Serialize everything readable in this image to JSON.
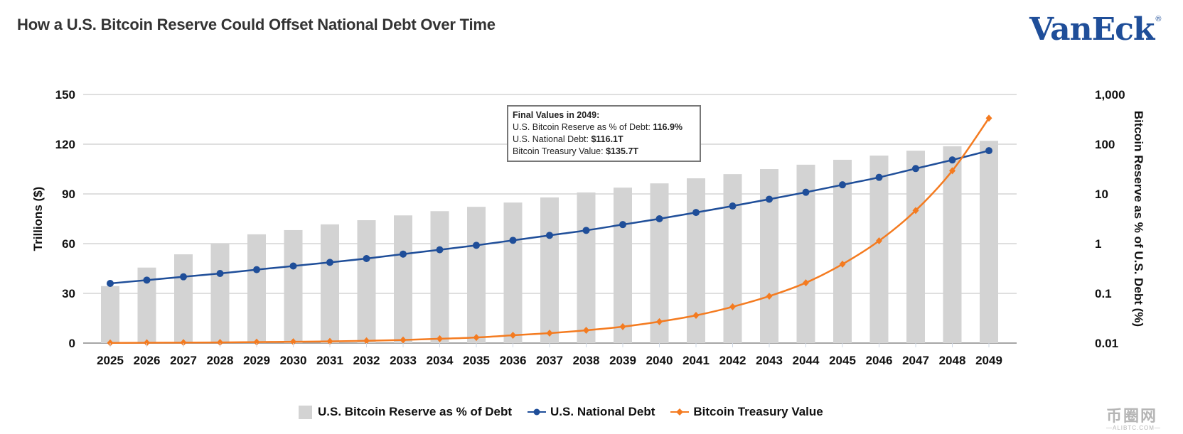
{
  "header": {
    "title": "How a U.S. Bitcoin Reserve Could Offset National Debt Over Time",
    "logo_text": "VanEck",
    "logo_mark": "®"
  },
  "tooltip": {
    "heading": "Final Values in 2049:",
    "rows": [
      {
        "label": "U.S. Bitcoin Reserve as % of Debt: ",
        "value": "116.9%"
      },
      {
        "label": "U.S. National Debt: ",
        "value": "$116.1T"
      },
      {
        "label": "Bitcoin Treasury Value: ",
        "value": "$135.7T"
      }
    ]
  },
  "watermark": {
    "cn": "币圈网",
    "en": "—ALIBTC.COM—"
  },
  "colors": {
    "bar": "#d3d3d3",
    "debt": "#1f4e99",
    "btc": "#f47b20",
    "grid": "#bfbfbf",
    "brand": "#1f4e99"
  },
  "chart_data": {
    "type": "bar+line",
    "title": "How a U.S. Bitcoin Reserve Could Offset National Debt Over Time",
    "xlabel": "",
    "ylabel": "Trillions ($)",
    "y2label": "Bitcoin Reserve as % of U.S. Debt (%)",
    "ylim": [
      0,
      150
    ],
    "yticks": [
      "0",
      "30",
      "60",
      "90",
      "120",
      "150"
    ],
    "y2lim": [
      0.01,
      1000
    ],
    "y2scale": "log",
    "y2ticks": [
      "0.01",
      "0.1",
      "1",
      "10",
      "100",
      "1,000"
    ],
    "grid": true,
    "legend_position": "bottom",
    "categories": [
      "2025",
      "2026",
      "2027",
      "2028",
      "2029",
      "2030",
      "2031",
      "2032",
      "2033",
      "2034",
      "2035",
      "2036",
      "2037",
      "2038",
      "2039",
      "2040",
      "2041",
      "2042",
      "2043",
      "2044",
      "2045",
      "2046",
      "2047",
      "2048",
      "2049"
    ],
    "series": [
      {
        "name": "U.S. Bitcoin Reserve as % of Debt",
        "type": "bar",
        "axis": "right",
        "values": [
          0.14,
          0.33,
          0.61,
          1.0,
          1.54,
          1.87,
          2.44,
          2.96,
          3.7,
          4.5,
          5.5,
          6.7,
          8.5,
          10.7,
          13.4,
          16.3,
          20.6,
          25.0,
          31.6,
          38.7,
          48.6,
          59.0,
          74.0,
          91.0,
          116.9
        ]
      },
      {
        "name": "U.S. National Debt",
        "type": "line",
        "axis": "left",
        "marker": "circle",
        "values": [
          36.0,
          38.0,
          40.0,
          42.0,
          44.3,
          46.5,
          48.7,
          51.0,
          53.7,
          56.3,
          59.0,
          62.0,
          65.0,
          68.0,
          71.5,
          75.0,
          78.8,
          82.7,
          86.8,
          91.0,
          95.5,
          100.0,
          105.3,
          110.5,
          116.1
        ]
      },
      {
        "name": "Bitcoin Treasury Value",
        "type": "line",
        "axis": "left",
        "marker": "diamond",
        "values": [
          0.1,
          0.2,
          0.3,
          0.4,
          0.6,
          0.8,
          1.0,
          1.4,
          1.9,
          2.6,
          3.4,
          4.7,
          6.0,
          7.7,
          9.9,
          12.9,
          16.7,
          21.9,
          28.3,
          36.4,
          47.6,
          61.7,
          80.0,
          104.0,
          135.7
        ]
      }
    ]
  }
}
